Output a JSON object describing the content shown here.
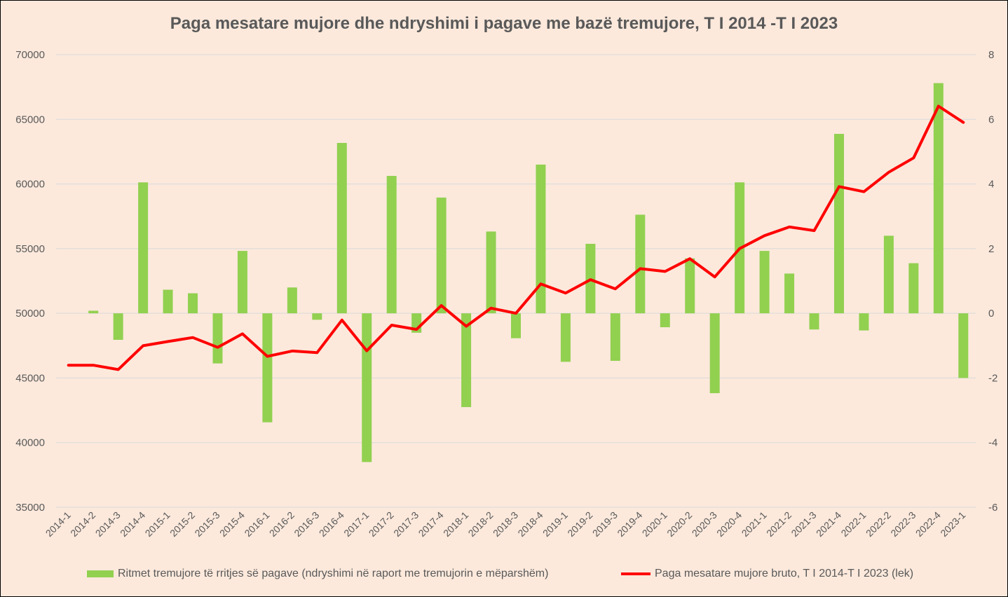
{
  "colors": {
    "background": "#fce9dc",
    "bars": "#92d050",
    "line": "#ff0000",
    "grid": "#d9d9d9",
    "text": "#595959"
  },
  "chart_data": {
    "type": "bar",
    "title": "Paga mesatare mujore dhe ndryshimi i pagave me bazë tremujore, T I 2014 -T I 2023",
    "categories": [
      "2014-1",
      "2014-2",
      "2014-3",
      "2014-4",
      "2015-1",
      "2015-2",
      "2015-3",
      "2015-4",
      "2016-1",
      "2016-2",
      "2016-3",
      "2016-4",
      "2017-1",
      "2017-2",
      "2017-3",
      "2017-4",
      "2018-1",
      "2018-2",
      "2018-3",
      "2018-4",
      "2019-1",
      "2019-2",
      "2019-3",
      "2019-4",
      "2020-1",
      "2020-2",
      "2020-3",
      "2020-4",
      "2021-1",
      "2021-2",
      "2021-3",
      "2021-4",
      "2022-1",
      "2022-2",
      "2022-3",
      "2022-4",
      "2023-1"
    ],
    "y_left": {
      "min": 35000,
      "max": 70000,
      "step": 5000,
      "ticks": [
        "35000",
        "40000",
        "45000",
        "50000",
        "55000",
        "60000",
        "65000",
        "70000"
      ]
    },
    "y_right": {
      "min": -6,
      "max": 8,
      "step": 2,
      "ticks": [
        "-6",
        "-4",
        "-2",
        "0",
        "2",
        "4",
        "6",
        "8"
      ]
    },
    "grid": true,
    "legend_position": "bottom",
    "series": [
      {
        "name": "Ritmet tremujore të rritjes së pagave (ndryshimi në raport me tremujorin e mëparshëm)",
        "type": "bar",
        "axis": "right",
        "values": [
          null,
          0.08,
          -0.82,
          4.05,
          0.73,
          0.62,
          -1.55,
          1.93,
          -3.37,
          0.8,
          -0.2,
          5.27,
          -4.6,
          4.25,
          -0.6,
          3.58,
          -2.9,
          2.53,
          -0.77,
          4.6,
          -1.5,
          2.15,
          -1.47,
          3.05,
          -0.43,
          1.7,
          -2.47,
          4.05,
          1.93,
          1.23,
          -0.5,
          5.55,
          -0.53,
          2.4,
          1.55,
          7.12,
          -2.0
        ]
      },
      {
        "name": "Paga mesatare mujore bruto, T I 2014-T I 2023 (lek)",
        "type": "line",
        "axis": "left",
        "values": [
          45986,
          45986,
          45650,
          47492,
          47819,
          48128,
          47367,
          48415,
          46669,
          47088,
          46955,
          49477,
          47104,
          49089,
          48757,
          50599,
          49000,
          50400,
          50000,
          52274,
          51567,
          52602,
          51892,
          53456,
          53237,
          54223,
          52815,
          55003,
          56005,
          56677,
          56398,
          59800,
          59404,
          60906,
          62017,
          66016,
          64763
        ]
      }
    ]
  }
}
